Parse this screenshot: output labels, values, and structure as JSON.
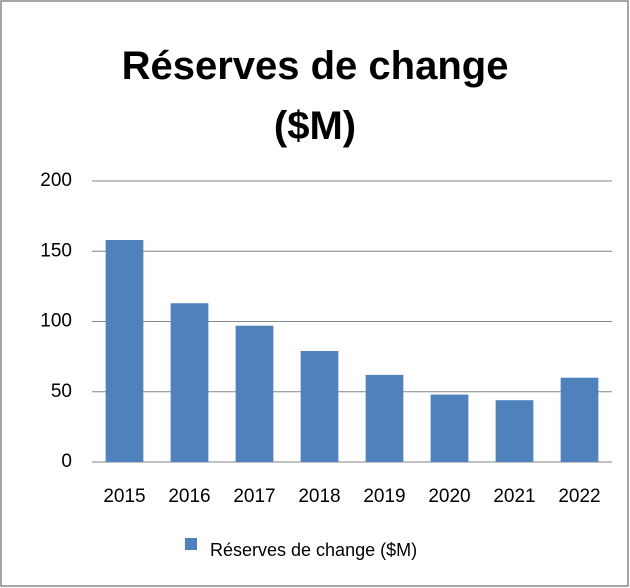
{
  "chart_data": {
    "type": "bar",
    "title": "Réserves de change ($M)",
    "categories": [
      "2015",
      "2016",
      "2017",
      "2018",
      "2019",
      "2020",
      "2021",
      "2022"
    ],
    "series": [
      {
        "name": "Réserves de change ($M)",
        "color": "#4f81bd",
        "values": [
          158,
          113,
          97,
          79,
          62,
          48,
          44,
          60
        ]
      }
    ],
    "ylim": [
      0,
      200
    ],
    "yticks": [
      0,
      50,
      100,
      150,
      200
    ],
    "grid": true,
    "legend": "bottom"
  }
}
